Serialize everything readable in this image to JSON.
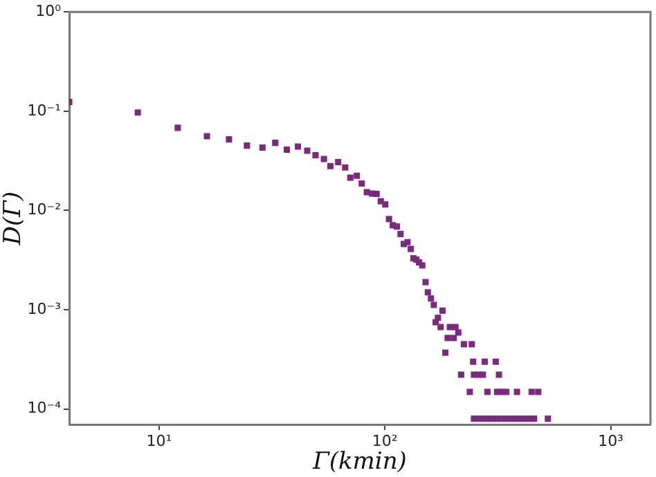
{
  "chart_data": {
    "type": "scatter",
    "xlabel": "Γ(kmin)",
    "ylabel": "D(Γ)",
    "log": "xy",
    "marker": "square",
    "grid": false,
    "legend": false,
    "xlim": [
      4,
      1500
    ],
    "ylim": [
      7.5e-05,
      1
    ],
    "xticks": [
      {
        "value": 10,
        "label": "10¹"
      },
      {
        "value": 100,
        "label": "10²"
      },
      {
        "value": 1000,
        "label": "10³"
      }
    ],
    "yticks": [
      {
        "value": 0.0001,
        "label": "10⁻⁴"
      },
      {
        "value": 0.001,
        "label": "10⁻³"
      },
      {
        "value": 0.01,
        "label": "10⁻²"
      },
      {
        "value": 0.1,
        "label": "10⁻¹"
      },
      {
        "value": 1,
        "label": "10⁰"
      }
    ],
    "series": [
      {
        "color": "#7b2a7f",
        "x": [
          4.0,
          8.05,
          12.1,
          16.3,
          20.4,
          24.5,
          28.7,
          32.7,
          36.8,
          41.2,
          45.3,
          49.3,
          53.7,
          57.4,
          62.1,
          66.7,
          70.3,
          75.1,
          79.0,
          83.2,
          87.7,
          91.9,
          95.9,
          100.4,
          104.3,
          108.4,
          113,
          117.3,
          121.3,
          126,
          130.2,
          133.9,
          137.8,
          141.6,
          146.4,
          151.4,
          155,
          160,
          164.7,
          180,
          171.8,
          167.9,
          176.6,
          194,
          205.4,
          211.4,
          189.7,
          201.8,
          223.9,
          242.6,
          185.3,
          246,
          276.7,
          309.6,
          217.5,
          248,
          260,
          271.5,
          320,
          237.7,
          284.6,
          314,
          329,
          345,
          384.6,
          446.7,
          477.5,
          248,
          260,
          273,
          286,
          300,
          314,
          329,
          345,
          361,
          379,
          397,
          417,
          437,
          458,
          527
        ],
        "values": [
          0.124,
          0.097,
          0.068,
          0.056,
          0.052,
          0.045,
          0.043,
          0.048,
          0.041,
          0.044,
          0.04,
          0.036,
          0.033,
          0.028,
          0.0307,
          0.0271,
          0.0214,
          0.0224,
          0.0187,
          0.0153,
          0.0148,
          0.0147,
          0.0124,
          0.0115,
          0.0082,
          0.0071,
          0.0069,
          0.0058,
          0.0046,
          0.0048,
          0.0041,
          0.0033,
          0.0032,
          0.003,
          0.0028,
          0.0019,
          0.0015,
          0.0013,
          0.00112,
          0.00098,
          0.00083,
          0.00075,
          0.00067,
          0.00067,
          0.00067,
          0.00059,
          0.00052,
          0.00052,
          0.00045,
          0.00045,
          0.00037,
          0.0003,
          0.0003,
          0.0003,
          0.000222,
          0.000222,
          0.000222,
          0.000222,
          0.000222,
          0.000149,
          0.000149,
          0.000149,
          0.000149,
          0.000149,
          0.000149,
          0.000149,
          0.000149,
          8e-05,
          8e-05,
          8e-05,
          8e-05,
          8e-05,
          8e-05,
          8e-05,
          8e-05,
          8e-05,
          8e-05,
          8e-05,
          8e-05,
          8e-05,
          8e-05,
          8e-05
        ]
      }
    ]
  }
}
